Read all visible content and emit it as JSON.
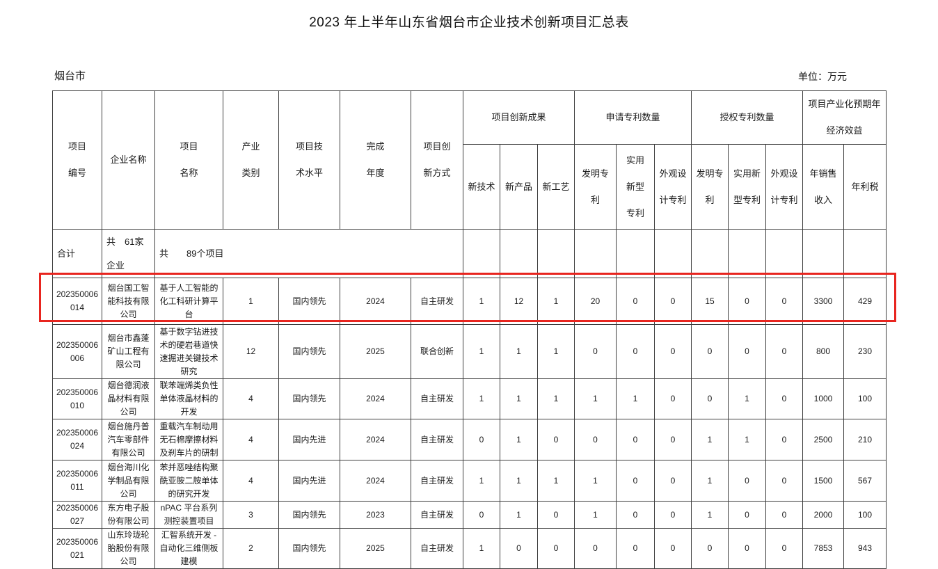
{
  "page": {
    "title": "2023 年上半年山东省烟台市企业技术创新项目汇总表",
    "region_label": "烟台市",
    "unit_label": "单位：万元"
  },
  "annotation": {
    "highlight_box_color": "#e8251f"
  },
  "table": {
    "headers": {
      "project_id": "项目\n编号",
      "company": "企业名称",
      "project_name": "项目\n名称",
      "industry": "产业\n类别",
      "tech_level": "项目技\n术水平",
      "completion_year": "完成\n年度",
      "innovation_method": "项目创\n新方式",
      "group_outcomes": "项目创新成果",
      "group_applied_patents": "申请专利数量",
      "group_granted_patents": "授权专利数量",
      "group_economic": "项目产业化预期年\n经济效益",
      "sub_new_tech": "新技术",
      "sub_new_product": "新产品",
      "sub_new_process": "新工艺",
      "applied_invention": "发明专\n利",
      "applied_utility": "实用\n新型\n专利",
      "applied_design": "外观设\n计专利",
      "granted_invention": "发明专\n利",
      "granted_utility": "实用新\n型专利",
      "granted_design": "外观设\n计专利",
      "annual_sales": "年销售\n收入",
      "annual_profit_tax": "年利税"
    },
    "summary": {
      "label": "合计",
      "companies": "共　61家\n企业",
      "projects": "共　　89个项目"
    },
    "rows": [
      {
        "id": "202350006\n014",
        "company": "烟台国工智\n能科技有限\n公司",
        "project": "基于人工智能的\n化工科研计算平\n台",
        "industry": "1",
        "tech_level": "国内领先",
        "year": "2024",
        "method": "自主研发",
        "values": [
          "1",
          "12",
          "1",
          "20",
          "0",
          "0",
          "15",
          "0",
          "0",
          "3300",
          "429"
        ],
        "highlighted": true
      },
      {
        "id": "202350006\n006",
        "company": "烟台市鑫蓬\n矿山工程有\n限公司",
        "project": "基于数字钻进技\n术的硬岩巷道快\n速掘进关键技术\n研究",
        "industry": "12",
        "tech_level": "国内领先",
        "year": "2025",
        "method": "联合创新",
        "values": [
          "1",
          "1",
          "1",
          "0",
          "0",
          "0",
          "0",
          "0",
          "0",
          "800",
          "230"
        ],
        "highlighted": false
      },
      {
        "id": "202350006\n010",
        "company": "烟台德润液\n晶材料有限\n公司",
        "project": "联苯端烯类负性\n单体液晶材料的\n开发",
        "industry": "4",
        "tech_level": "国内领先",
        "year": "2024",
        "method": "自主研发",
        "values": [
          "1",
          "1",
          "1",
          "1",
          "1",
          "0",
          "0",
          "1",
          "0",
          "1000",
          "100"
        ],
        "highlighted": false
      },
      {
        "id": "202350006\n024",
        "company": "烟台施丹普\n汽车零部件\n有限公司",
        "project": "重载汽车制动用\n无石棉摩擦材料\n及刹车片的研制",
        "industry": "4",
        "tech_level": "国内先进",
        "year": "2024",
        "method": "自主研发",
        "values": [
          "0",
          "1",
          "0",
          "0",
          "0",
          "0",
          "1",
          "1",
          "0",
          "2500",
          "210"
        ],
        "highlighted": false
      },
      {
        "id": "202350006\n011",
        "company": "烟台海川化\n学制品有限\n公司",
        "project": "苯并恶唑结构聚\n酰亚胺二胺单体\n的研究开发",
        "industry": "4",
        "tech_level": "国内先进",
        "year": "2024",
        "method": "自主研发",
        "values": [
          "1",
          "1",
          "1",
          "1",
          "0",
          "0",
          "1",
          "0",
          "0",
          "1500",
          "567"
        ],
        "highlighted": false
      },
      {
        "id": "202350006\n027",
        "company": "东方电子股\n份有限公司",
        "project": "nPAC 平台系列\n测控装置项目",
        "industry": "3",
        "tech_level": "国内领先",
        "year": "2023",
        "method": "自主研发",
        "values": [
          "0",
          "1",
          "0",
          "1",
          "0",
          "0",
          "1",
          "0",
          "0",
          "2000",
          "100"
        ],
        "highlighted": false
      },
      {
        "id": "202350006\n021",
        "company": "山东玲珑轮\n胎股份有限\n公司",
        "project": "汇智系统开发 -\n自动化三维侧板\n建模",
        "industry": "2",
        "tech_level": "国内领先",
        "year": "2025",
        "method": "自主研发",
        "values": [
          "1",
          "0",
          "0",
          "0",
          "0",
          "0",
          "0",
          "0",
          "0",
          "7853",
          "943"
        ],
        "highlighted": false
      }
    ]
  }
}
